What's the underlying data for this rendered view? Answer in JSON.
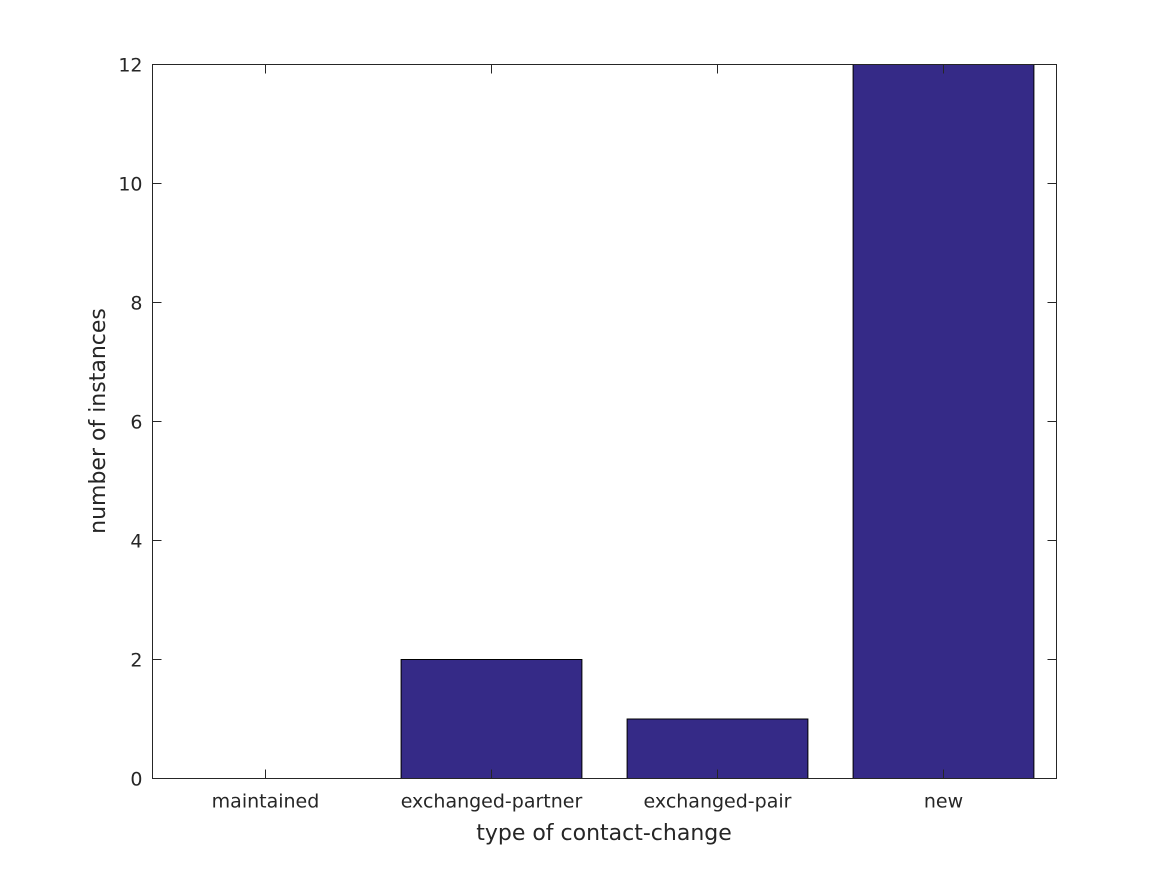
{
  "chart_data": {
    "type": "bar",
    "categories": [
      "maintained",
      "exchanged-partner",
      "exchanged-pair",
      "new"
    ],
    "values": [
      0,
      2,
      1,
      12
    ],
    "xlabel": "type of contact-change",
    "ylabel": "number of instances",
    "ylim": [
      0,
      12
    ],
    "yticks": [
      "0",
      "2",
      "4",
      "6",
      "8",
      "10",
      "12"
    ],
    "grid": false,
    "bar_color": "#352a87"
  }
}
